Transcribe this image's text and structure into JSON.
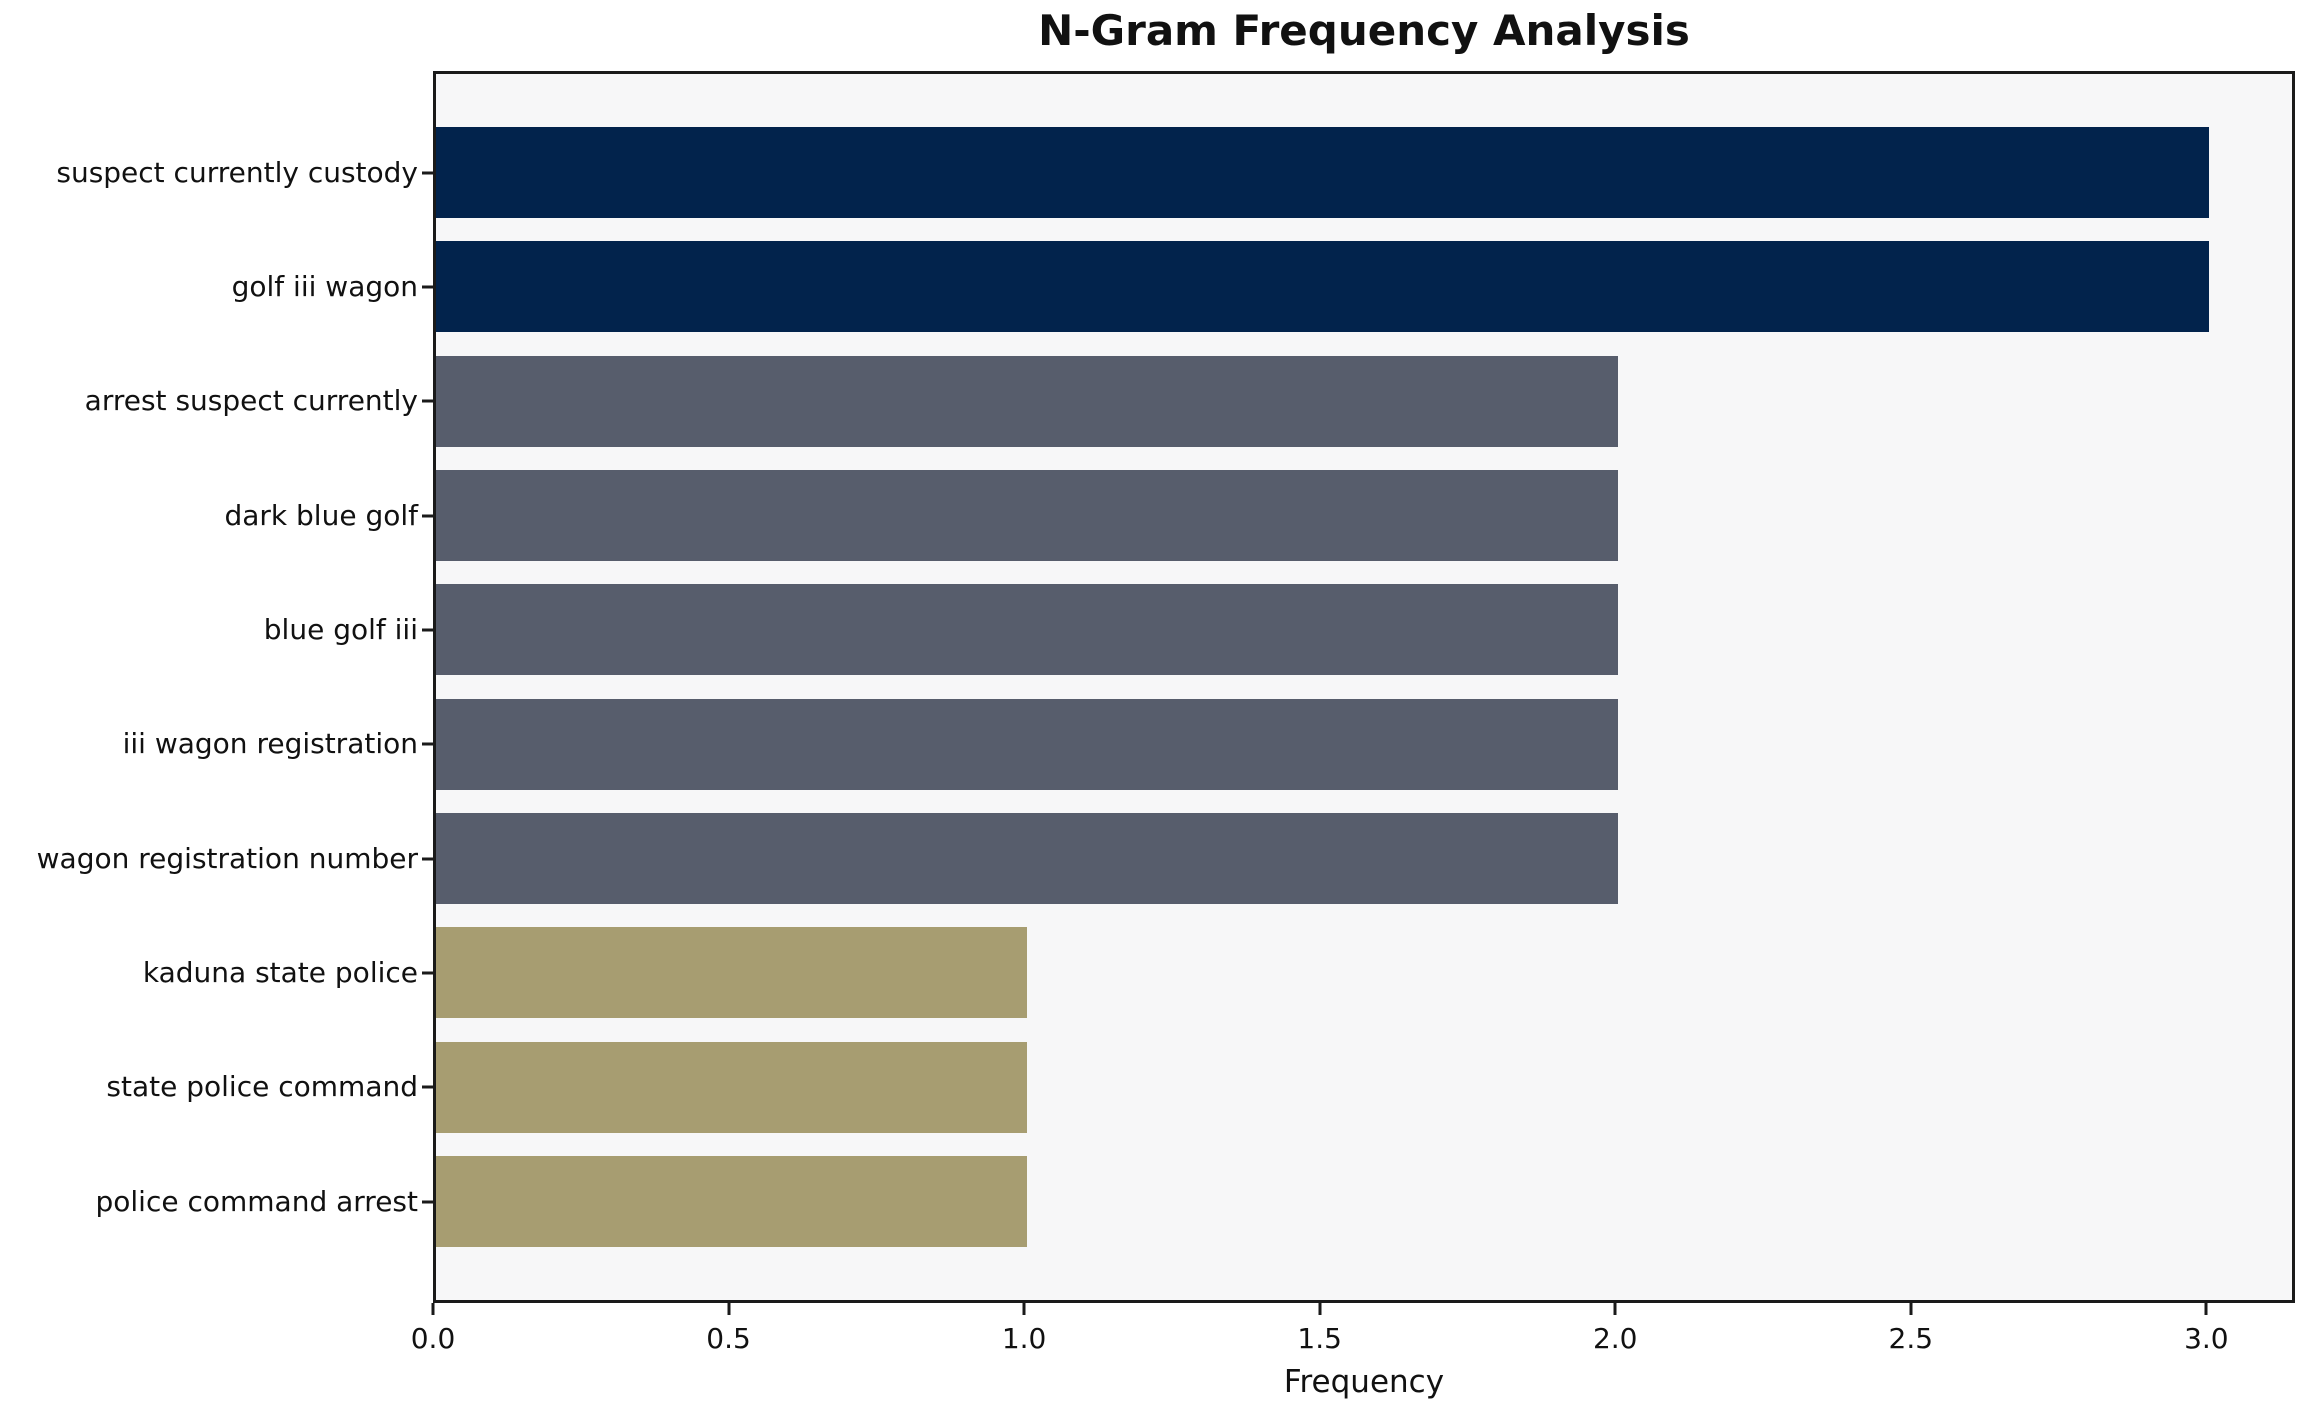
{
  "chart_data": {
    "type": "bar",
    "orientation": "horizontal",
    "title": "N-Gram Frequency Analysis",
    "xlabel": "Frequency",
    "ylabel": "",
    "categories": [
      "suspect currently custody",
      "golf iii wagon",
      "arrest suspect currently",
      "dark blue golf",
      "blue golf iii",
      "iii wagon registration",
      "wagon registration number",
      "kaduna state police",
      "state police command",
      "police command arrest"
    ],
    "values": [
      3,
      3,
      2,
      2,
      2,
      2,
      2,
      1,
      1,
      1
    ],
    "bar_colors": [
      "#02234c",
      "#02234c",
      "#575d6c",
      "#575d6c",
      "#575d6c",
      "#575d6c",
      "#575d6c",
      "#a79d71",
      "#a79d71",
      "#a79d71"
    ],
    "xlim": [
      0,
      3.15
    ],
    "xticks": [
      0.0,
      0.5,
      1.0,
      1.5,
      2.0,
      2.5,
      3.0
    ],
    "xtick_labels": [
      "0.0",
      "0.5",
      "1.0",
      "1.5",
      "2.0",
      "2.5",
      "3.0"
    ],
    "grid": false,
    "legend": null,
    "colors": {
      "plot_background": "#f7f7f8",
      "figure_background": "#ffffff",
      "frame": "#1a1a1a",
      "text": "#111111",
      "high_frequency": "#02234c",
      "mid_frequency": "#575d6c",
      "low_frequency": "#a79d71"
    }
  }
}
